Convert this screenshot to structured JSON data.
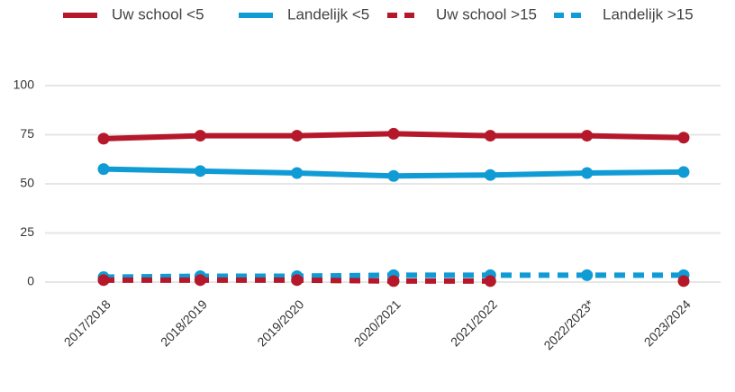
{
  "chart_data": {
    "type": "line",
    "categories": [
      "2017/2018",
      "2018/2019",
      "2019/2020",
      "2020/2021",
      "2021/2022",
      "2022/2023*",
      "2023/2024"
    ],
    "series": [
      {
        "name": "Uw school <5",
        "color": "#b5172b",
        "dashed": false,
        "values": [
          73,
          74.5,
          74.5,
          75.5,
          74.5,
          74.5,
          73.5
        ]
      },
      {
        "name": "Landelijk <5",
        "color": "#109bd5",
        "dashed": false,
        "values": [
          57.5,
          56.5,
          55.5,
          54,
          54.5,
          55.5,
          56
        ]
      },
      {
        "name": "Uw school >15",
        "color": "#b5172b",
        "dashed": true,
        "values": [
          1,
          1,
          1,
          0.5,
          0.5,
          null,
          0.5
        ]
      },
      {
        "name": "Landelijk >15",
        "color": "#109bd5",
        "dashed": true,
        "values": [
          2.5,
          3,
          3,
          3.5,
          3.5,
          3.5,
          3.5
        ]
      }
    ],
    "ylim": [
      0,
      100
    ],
    "yticks": [
      0,
      25,
      50,
      75,
      100
    ],
    "grid": true,
    "legend": "top"
  }
}
